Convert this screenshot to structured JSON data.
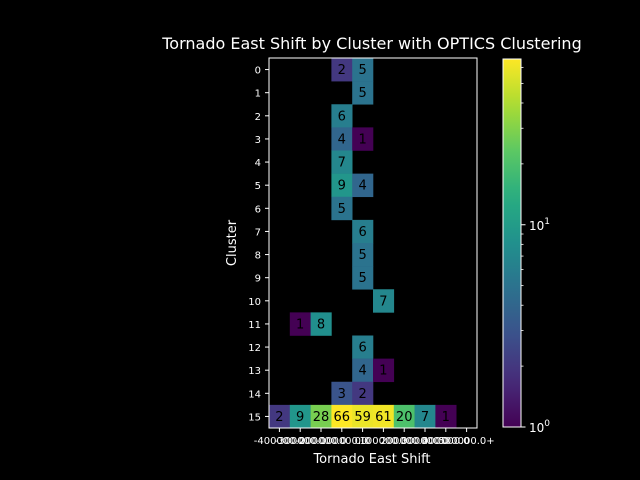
{
  "chart_data": {
    "type": "heatmap",
    "title": "Tornado East Shift by Cluster with OPTICS Clustering",
    "xlabel": "Tornado East Shift",
    "ylabel": "Cluster",
    "x_categories": [
      "-400000.0",
      "-300000.0",
      "-200000.0",
      "-100000.0",
      "0.0",
      "100000.0",
      "200000.0",
      "300000.0",
      "400000.0",
      "500000.0+"
    ],
    "y_categories": [
      "0",
      "1",
      "2",
      "3",
      "4",
      "5",
      "6",
      "7",
      "8",
      "9",
      "10",
      "11",
      "12",
      "13",
      "14",
      "15"
    ],
    "cells": [
      {
        "x": 3,
        "y": 0,
        "value": 2
      },
      {
        "x": 4,
        "y": 0,
        "value": 5
      },
      {
        "x": 4,
        "y": 1,
        "value": 5
      },
      {
        "x": 3,
        "y": 2,
        "value": 6
      },
      {
        "x": 3,
        "y": 3,
        "value": 4
      },
      {
        "x": 4,
        "y": 3,
        "value": 1
      },
      {
        "x": 3,
        "y": 4,
        "value": 7
      },
      {
        "x": 3,
        "y": 5,
        "value": 9
      },
      {
        "x": 4,
        "y": 5,
        "value": 4
      },
      {
        "x": 3,
        "y": 6,
        "value": 5
      },
      {
        "x": 4,
        "y": 7,
        "value": 6
      },
      {
        "x": 4,
        "y": 8,
        "value": 5
      },
      {
        "x": 4,
        "y": 9,
        "value": 5
      },
      {
        "x": 5,
        "y": 10,
        "value": 7
      },
      {
        "x": 1,
        "y": 11,
        "value": 1
      },
      {
        "x": 2,
        "y": 11,
        "value": 8
      },
      {
        "x": 4,
        "y": 12,
        "value": 6
      },
      {
        "x": 4,
        "y": 13,
        "value": 4
      },
      {
        "x": 5,
        "y": 13,
        "value": 1
      },
      {
        "x": 3,
        "y": 14,
        "value": 3
      },
      {
        "x": 4,
        "y": 14,
        "value": 2
      },
      {
        "x": 0,
        "y": 15,
        "value": 2
      },
      {
        "x": 1,
        "y": 15,
        "value": 9
      },
      {
        "x": 2,
        "y": 15,
        "value": 28
      },
      {
        "x": 3,
        "y": 15,
        "value": 66
      },
      {
        "x": 4,
        "y": 15,
        "value": 59
      },
      {
        "x": 5,
        "y": 15,
        "value": 61
      },
      {
        "x": 6,
        "y": 15,
        "value": 20
      },
      {
        "x": 7,
        "y": 15,
        "value": 7
      },
      {
        "x": 8,
        "y": 15,
        "value": 1
      }
    ],
    "color_scale": "log",
    "vmin": 1,
    "vmax": 66,
    "colormap": "viridis",
    "colorbar_ticks": [
      "10^0",
      "10^1"
    ],
    "background": "#000000",
    "foreground": "#ffffff"
  }
}
